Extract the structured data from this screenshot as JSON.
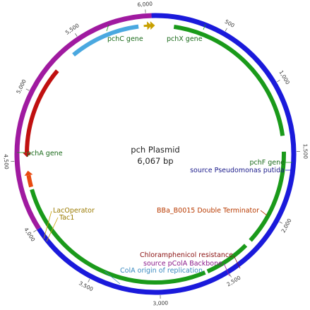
{
  "plasmid": {
    "name": "pch Plasmid",
    "size_label": "6,067 bp",
    "length_bp": 6067
  },
  "ticks": [
    {
      "bp": 500,
      "label": "500"
    },
    {
      "bp": 1000,
      "label": "1,000"
    },
    {
      "bp": 1500,
      "label": "1,500"
    },
    {
      "bp": 2000,
      "label": "2,000"
    },
    {
      "bp": 2500,
      "label": "2,500"
    },
    {
      "bp": 3000,
      "label": "3,000"
    },
    {
      "bp": 3500,
      "label": "3,500"
    },
    {
      "bp": 4000,
      "label": "4,000"
    },
    {
      "bp": 4500,
      "label": "4,500"
    },
    {
      "bp": 5000,
      "label": "5,000"
    },
    {
      "bp": 5500,
      "label": "5,500"
    },
    {
      "bp": 6000,
      "label": "6,000"
    }
  ],
  "backbone": [
    {
      "name": "source Pseudomonas putida",
      "start": 6040,
      "end": 4000,
      "color": "#1a1adb"
    },
    {
      "name": "source pColA Backbone",
      "start": 4000,
      "end": 6040,
      "color": "#a01aa0"
    }
  ],
  "features": [
    {
      "name": "pchA gene",
      "start": 140,
      "end": 1380,
      "track": "inner",
      "color": "#1a9a1a",
      "arrow": "none"
    },
    {
      "name": "pchC gene",
      "start": 1500,
      "end": 2230,
      "track": "inner",
      "color": "#1a9a1a",
      "arrow": "none"
    },
    {
      "name": "pchX gene",
      "start": 2280,
      "end": 2630,
      "track": "inner",
      "color": "#1a9a1a",
      "arrow": "none"
    },
    {
      "name": "pchF gene",
      "start": 2650,
      "end": 4280,
      "track": "inner",
      "color": "#1a9a1a",
      "arrow": "none"
    },
    {
      "name": "BBa_B0015 Double Terminator",
      "start": 4300,
      "end": 4390,
      "track": "inner",
      "color": "#e84a10",
      "arrow": "end"
    },
    {
      "name": "Chloramphenicol resistance",
      "start": 4560,
      "end": 5230,
      "track": "inner",
      "color": "#c01010",
      "arrow": "start"
    },
    {
      "name": "ColA origin of replication",
      "start": 5400,
      "end": 5940,
      "track": "inner",
      "color": "#4aa8e0",
      "arrow": "none"
    },
    {
      "name": "LacOperator",
      "start": 6000,
      "end": 6030,
      "track": "inner",
      "color": "#c8a000",
      "arrow": "end"
    },
    {
      "name": "Tac1",
      "start": 5980,
      "end": 6005,
      "track": "inner",
      "color": "#c8a000",
      "arrow": "end"
    }
  ],
  "labels": {
    "pcha": "pchA gene",
    "pchc": "pchC gene",
    "pchx": "pchX gene",
    "pchf": "pchF gene",
    "pseudo": "source Pseudomonas putida",
    "term": "BBa_B0015 Double Terminator",
    "cm": "Chloramphenicol resistance",
    "pcola": "source pColA Backbone",
    "cola": "ColA origin of replication",
    "lac": "LacOperator",
    "tac": "Tac1"
  },
  "colors": {
    "green": "#1a9a1a",
    "blue_backbone": "#1a1adb",
    "purple_backbone": "#a01aa0",
    "red": "#c01010",
    "orange": "#e84a10",
    "lightblue": "#4aa8e0",
    "gold": "#c8a000",
    "label_blue": "#1a1a8a",
    "label_red": "#8a1010",
    "label_orange": "#b83a00",
    "label_lightblue": "#3a8ac0"
  }
}
